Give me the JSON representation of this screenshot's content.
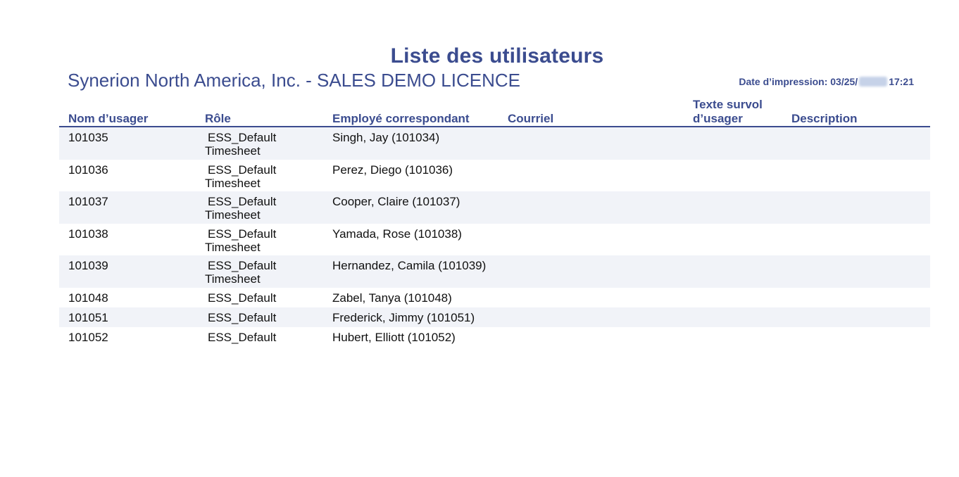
{
  "report": {
    "title": "Liste des utilisateurs",
    "company": "Synerion North America, Inc. - SALES DEMO LICENCE",
    "print_date_label": "Date d’impression: 03/25/",
    "print_time": "17:21"
  },
  "columns": {
    "username": "Nom d’usager",
    "role": "Rôle",
    "employee": "Employé correspondant",
    "email": "Courriel",
    "hover_line1": "Texte survol",
    "hover_line2": "d’usager",
    "description": "Description"
  },
  "rows": [
    {
      "username": "101035",
      "role_line1": "ESS_Default",
      "role_line2": "Timesheet",
      "employee": "Singh, Jay (101034)"
    },
    {
      "username": "101036",
      "role_line1": "ESS_Default",
      "role_line2": "Timesheet",
      "employee": "Perez, Diego (101036)"
    },
    {
      "username": "101037",
      "role_line1": "ESS_Default",
      "role_line2": "Timesheet",
      "employee": "Cooper, Claire (101037)"
    },
    {
      "username": "101038",
      "role_line1": "ESS_Default",
      "role_line2": "Timesheet",
      "employee": "Yamada, Rose (101038)"
    },
    {
      "username": "101039",
      "role_line1": "ESS_Default",
      "role_line2": "Timesheet",
      "employee": "Hernandez, Camila (101039)"
    },
    {
      "username": "101048",
      "role_line1": "ESS_Default",
      "role_line2": "",
      "employee": "Zabel, Tanya (101048)"
    },
    {
      "username": "101051",
      "role_line1": "ESS_Default",
      "role_line2": "",
      "employee": "Frederick, Jimmy (101051)"
    },
    {
      "username": "101052",
      "role_line1": "ESS_Default",
      "role_line2": "",
      "employee": "Hubert, Elliott (101052)"
    }
  ]
}
